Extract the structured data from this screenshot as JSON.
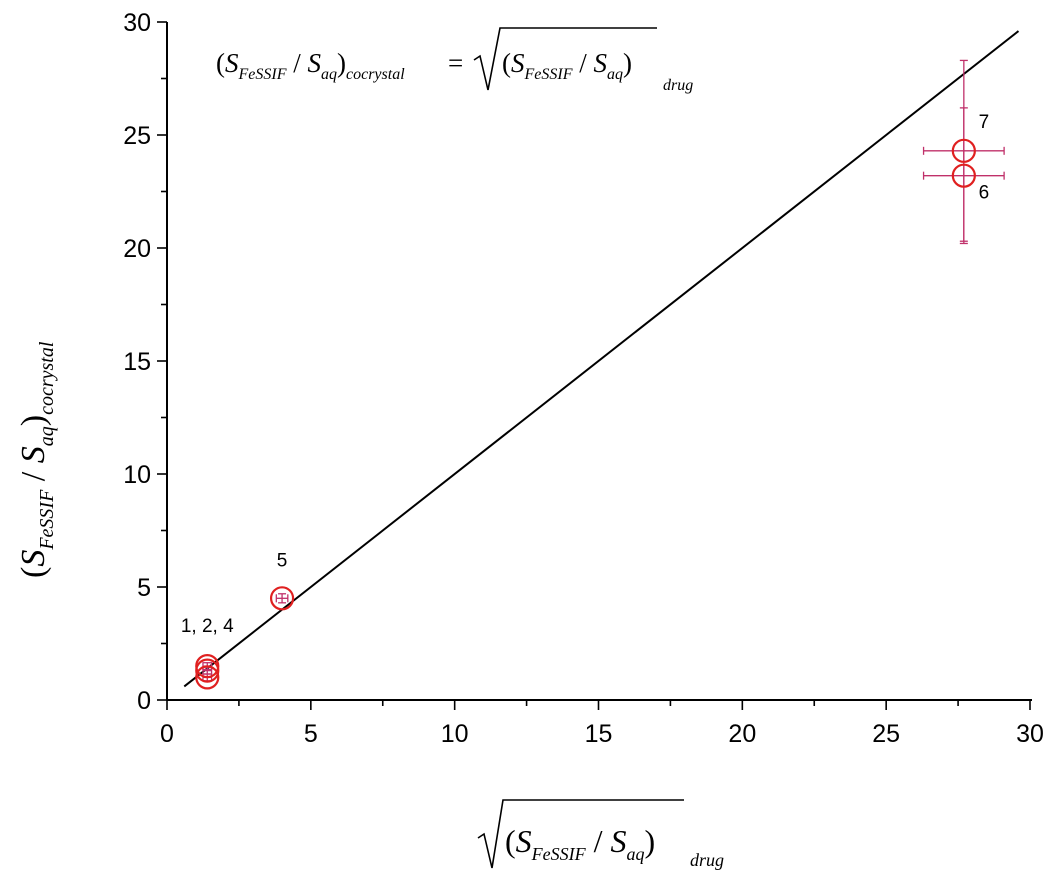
{
  "chart_data": {
    "type": "scatter",
    "title": "",
    "equation": {
      "lhs_open": "(",
      "S": "S",
      "num_sub": "FeSSIF",
      "slash": " / ",
      "den_sub": "aq",
      "lhs_close": ")",
      "lhs_sub": "cocrystal",
      "equals": "=",
      "rhs_sub": "drug"
    },
    "xlabel": {
      "open": "(",
      "S": "S",
      "num_sub": "FeSSIF",
      "slash": " / ",
      "den_sub": "aq",
      "close": ")",
      "sub": "drug"
    },
    "ylabel": {
      "open": "(",
      "S": "S",
      "num_sub": "FeSSIF",
      "slash": " / ",
      "den_sub": "aq",
      "close": ")",
      "sub": "cocrystal"
    },
    "xlim": [
      0,
      30
    ],
    "ylim": [
      0,
      30
    ],
    "xticks": [
      "0",
      "5",
      "10",
      "15",
      "20",
      "25",
      "30"
    ],
    "yticks": [
      "0",
      "5",
      "10",
      "15",
      "20",
      "25",
      "30"
    ],
    "grid": false,
    "legend": "none",
    "line": {
      "x": [
        0.6,
        29.6
      ],
      "y": [
        0.6,
        29.6
      ],
      "color": "#000000"
    },
    "marker_color": "#e02020",
    "errorbar_color": "#c0306a",
    "points": [
      {
        "x": 1.4,
        "y": 1.0,
        "xerr": 0.15,
        "yerr": 0.15
      },
      {
        "x": 1.4,
        "y": 1.3,
        "xerr": 0.15,
        "yerr": 0.15
      },
      {
        "x": 1.4,
        "y": 1.5,
        "xerr": 0.15,
        "yerr": 0.15
      },
      {
        "x": 4.0,
        "y": 4.5,
        "xerr": 0.2,
        "yerr": 0.2
      },
      {
        "x": 27.7,
        "y": 23.2,
        "xerr": 1.4,
        "yerr": 3.0
      },
      {
        "x": 27.7,
        "y": 24.3,
        "xerr": 1.4,
        "yerr": 4.0
      }
    ],
    "point_labels": [
      {
        "text": "1, 2, 4",
        "x": 1.4,
        "y": 3.0
      },
      {
        "text": "5",
        "x": 4.0,
        "y": 5.9
      },
      {
        "text": "7",
        "x": 28.4,
        "y": 25.3
      },
      {
        "text": "6",
        "x": 28.4,
        "y": 22.2
      }
    ]
  }
}
